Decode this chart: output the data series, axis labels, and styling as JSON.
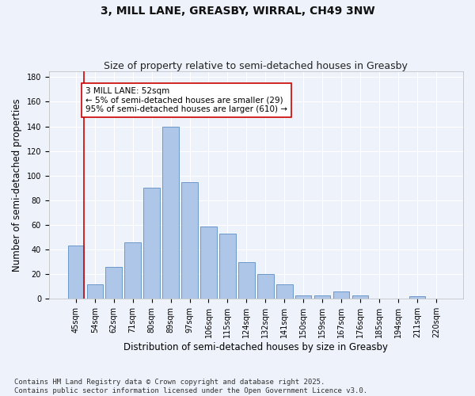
{
  "title_line1": "3, MILL LANE, GREASBY, WIRRAL, CH49 3NW",
  "title_line2": "Size of property relative to semi-detached houses in Greasby",
  "xlabel": "Distribution of semi-detached houses by size in Greasby",
  "ylabel": "Number of semi-detached properties",
  "footnote": "Contains HM Land Registry data © Crown copyright and database right 2025.\nContains public sector information licensed under the Open Government Licence v3.0.",
  "bar_labels": [
    "45sqm",
    "54sqm",
    "62sqm",
    "71sqm",
    "80sqm",
    "89sqm",
    "97sqm",
    "106sqm",
    "115sqm",
    "124sqm",
    "132sqm",
    "141sqm",
    "150sqm",
    "159sqm",
    "167sqm",
    "176sqm",
    "185sqm",
    "194sqm",
    "211sqm",
    "220sqm"
  ],
  "bar_values": [
    43,
    12,
    26,
    46,
    90,
    140,
    95,
    59,
    53,
    30,
    20,
    12,
    3,
    3,
    6,
    3,
    0,
    0,
    2,
    0
  ],
  "bar_color": "#aec6e8",
  "bar_edge_color": "#5b8ec4",
  "annotation_title": "3 MILL LANE: 52sqm",
  "annotation_line1": "← 5% of semi-detached houses are smaller (29)",
  "annotation_line2": "95% of semi-detached houses are larger (610) →",
  "annotation_box_color": "#ffffff",
  "annotation_box_edge_color": "#cc0000",
  "vline_color": "#cc0000",
  "ylim": [
    0,
    185
  ],
  "yticks": [
    0,
    20,
    40,
    60,
    80,
    100,
    120,
    140,
    160,
    180
  ],
  "background_color": "#eef2fb",
  "grid_color": "#ffffff",
  "title_fontsize": 10,
  "subtitle_fontsize": 9,
  "axis_label_fontsize": 8.5,
  "tick_fontsize": 7,
  "footnote_fontsize": 6.5,
  "annotation_fontsize": 7.5
}
